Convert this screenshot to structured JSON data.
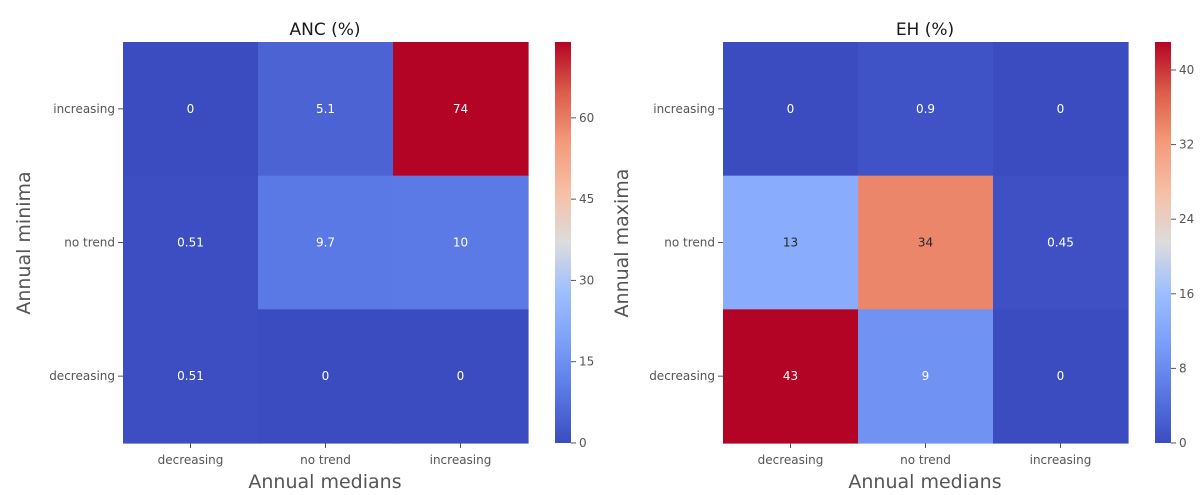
{
  "chart_data": [
    {
      "type": "heatmap",
      "title": "ANC (%)",
      "xlabel": "Annual medians",
      "ylabel": "Annual minima",
      "x_categories": [
        "decreasing",
        "no trend",
        "increasing"
      ],
      "y_categories": [
        "increasing",
        "no trend",
        "decreasing"
      ],
      "values": [
        [
          0,
          5.1,
          74
        ],
        [
          0.51,
          9.7,
          10
        ],
        [
          0.51,
          0,
          0
        ]
      ],
      "value_labels": [
        [
          "0",
          "5.1",
          "74"
        ],
        [
          "0.51",
          "9.7",
          "10"
        ],
        [
          "0.51",
          "0",
          "0"
        ]
      ],
      "colorbar": {
        "min": 0,
        "max": 74,
        "ticks": [
          "0",
          "15",
          "30",
          "45",
          "60"
        ],
        "colormap": "coolwarm"
      }
    },
    {
      "type": "heatmap",
      "title": "EH (%)",
      "xlabel": "Annual medians",
      "ylabel": "Annual maxima",
      "x_categories": [
        "decreasing",
        "no trend",
        "increasing"
      ],
      "y_categories": [
        "increasing",
        "no trend",
        "decreasing"
      ],
      "values": [
        [
          0,
          0.9,
          0
        ],
        [
          13,
          34,
          0.45
        ],
        [
          43,
          9,
          0
        ]
      ],
      "value_labels": [
        [
          "0",
          "0.9",
          "0"
        ],
        [
          "13",
          "34",
          "0.45"
        ],
        [
          "43",
          "9",
          "0"
        ]
      ],
      "colorbar": {
        "min": 0,
        "max": 43,
        "ticks": [
          "0",
          "8",
          "16",
          "24",
          "32",
          "40"
        ],
        "colormap": "coolwarm"
      }
    }
  ]
}
